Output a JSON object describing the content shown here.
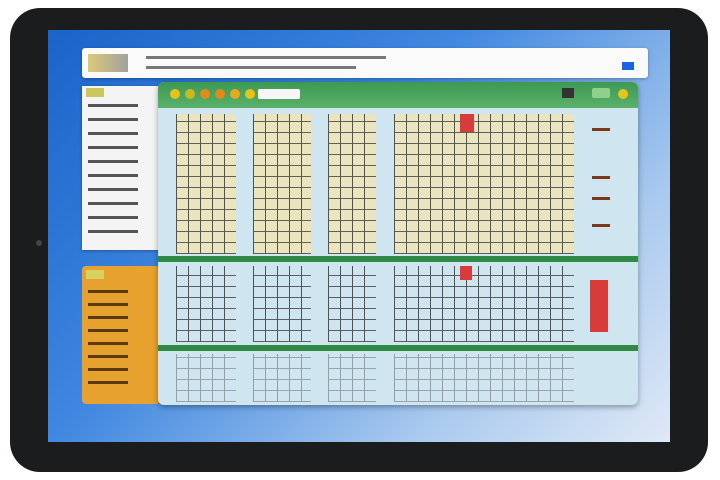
{
  "colors": {
    "bezel": "#1b1c1e",
    "desktop": "#1b63c9",
    "window_header": "#3d9a52",
    "window_body": "#cfe5ef",
    "side_panel": "#e7a12f",
    "highlight_red": "#d93a3a"
  },
  "toolbar": {
    "icons": [
      "settings-icon",
      "save-icon",
      "record-icon",
      "record-icon",
      "bookmark-icon",
      "record-icon"
    ]
  }
}
